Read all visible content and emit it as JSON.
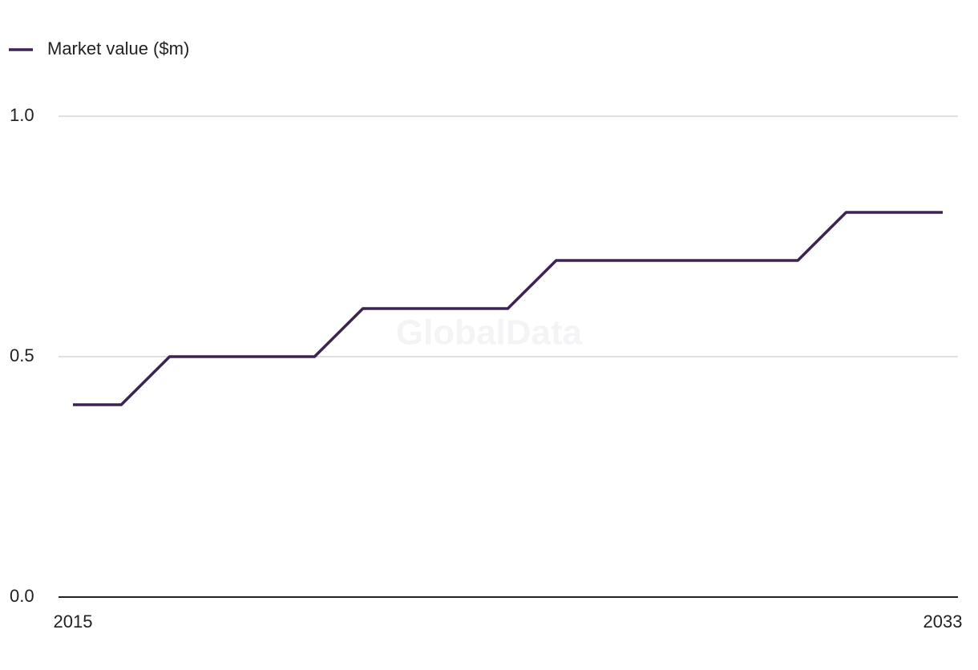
{
  "chart_data": {
    "type": "line",
    "watermark": "GlobalData",
    "x": [
      2015,
      2016,
      2017,
      2018,
      2019,
      2020,
      2021,
      2022,
      2023,
      2024,
      2025,
      2026,
      2027,
      2028,
      2029,
      2030,
      2031,
      2032,
      2033
    ],
    "series": [
      {
        "name": "Market value ($m)",
        "color": "#3b2352",
        "values": [
          0.4,
          0.4,
          0.5,
          0.5,
          0.5,
          0.5,
          0.6,
          0.6,
          0.6,
          0.6,
          0.7,
          0.7,
          0.7,
          0.7,
          0.7,
          0.7,
          0.8,
          0.8,
          0.8
        ]
      }
    ],
    "xlim": [
      2015,
      2033
    ],
    "xticks": [
      2015,
      2033
    ],
    "ylim": [
      0,
      1
    ],
    "yticks": [
      {
        "value": 0,
        "label": "0.0"
      },
      0.5,
      {
        "value": 1,
        "label": "1.0"
      }
    ],
    "grid": true,
    "legend": "top-left"
  }
}
